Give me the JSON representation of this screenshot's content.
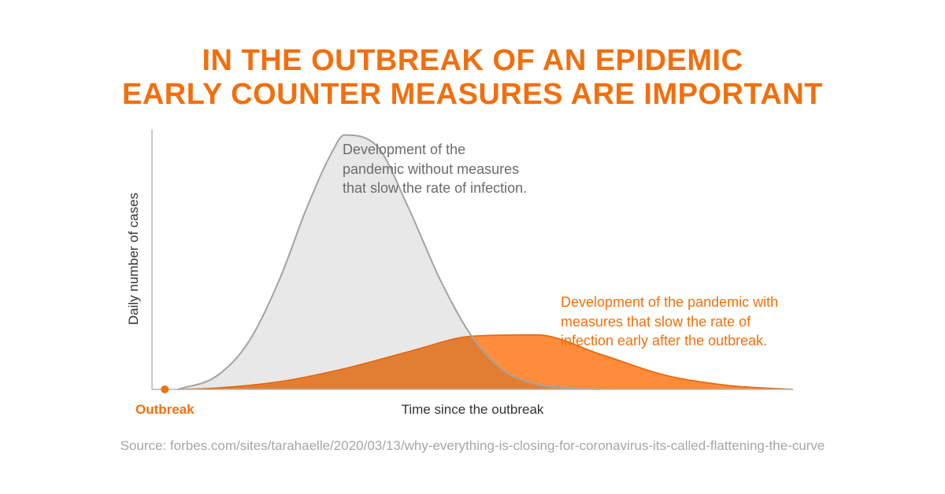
{
  "title": {
    "line1": "IN THE OUTBREAK OF AN EPIDEMIC",
    "line2": "EARLY COUNTER MEASURES ARE IMPORTANT"
  },
  "annotations": {
    "no_measures": [
      "Development of the",
      "pandemic without measures",
      "that slow the rate of infection."
    ],
    "with_measures": [
      "Development of the pandemic with",
      "measures that slow the rate of",
      "infection early after the outbreak."
    ]
  },
  "outbreak_label": "Outbreak",
  "source": "Source: forbes.com/sites/tarahaelle/2020/03/13/why-everything-is-closing-for-coronavirus-its-called-flattening-the-curve",
  "colors": {
    "accent": "#f26f0e",
    "gray_fill": "#e8e8e8",
    "gray_line": "#a3a3a3",
    "orange_fill": "#ff8c3a",
    "overlap_fill": "#e27e33"
  },
  "chart_data": {
    "type": "area",
    "xlabel": "Time since the outbreak",
    "ylabel": "Daily number of cases",
    "xlim": [
      0,
      100
    ],
    "ylim": [
      0,
      100
    ],
    "grid": false,
    "legend": "none",
    "outbreak_marker": {
      "x": 2
    },
    "series": [
      {
        "color": "gray",
        "x": [
          4,
          10,
          15,
          20,
          24,
          28,
          30,
          35,
          40,
          45,
          50,
          55,
          60,
          65,
          70
        ],
        "y": [
          0,
          5,
          18,
          43,
          69,
          91,
          98,
          94,
          70,
          42,
          20,
          7,
          2,
          0.5,
          0
        ]
      },
      {
        "color": "orange",
        "x": [
          4,
          10,
          20,
          30,
          40,
          50,
          60,
          70,
          80,
          90,
          100
        ],
        "y": [
          0,
          0.5,
          3,
          8,
          14.5,
          20.5,
          21,
          13.5,
          5.5,
          1.5,
          0
        ]
      }
    ]
  }
}
